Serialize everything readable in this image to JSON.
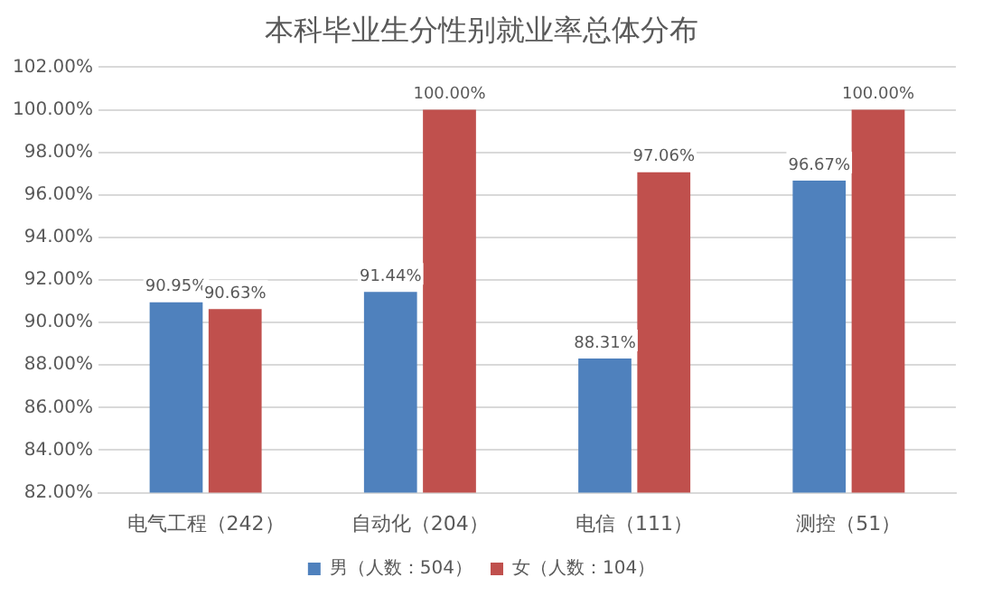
{
  "chart_data": {
    "type": "bar",
    "title": "本科毕业生分性别就业率总体分布",
    "categories": [
      "电气工程（242）",
      "自动化（204）",
      "电信（111）",
      "测控（51）"
    ],
    "series": [
      {
        "name": "男（人数：504）",
        "color": "#4f81bd",
        "values": [
          90.95,
          91.44,
          88.31,
          96.67
        ],
        "value_labels": [
          "90.95%",
          "91.44%",
          "88.31%",
          "96.67%"
        ]
      },
      {
        "name": "女（人数：104）",
        "color": "#c0504d",
        "values": [
          90.63,
          100,
          97.06,
          100
        ],
        "value_labels": [
          "90.63%",
          "100.00%",
          "97.06%",
          "100.00%"
        ]
      }
    ],
    "ylim": [
      82,
      102
    ],
    "yticks": [
      {
        "value": 82,
        "label": "82.00%"
      },
      {
        "value": 84,
        "label": "84.00%"
      },
      {
        "value": 86,
        "label": "86.00%"
      },
      {
        "value": 88,
        "label": "88.00%"
      },
      {
        "value": 90,
        "label": "90.00%"
      },
      {
        "value": 92,
        "label": "92.00%"
      },
      {
        "value": 94,
        "label": "94.00%"
      },
      {
        "value": 96,
        "label": "96.00%"
      },
      {
        "value": 98,
        "label": "98.00%"
      },
      {
        "value": 100,
        "label": "100.00%"
      },
      {
        "value": 102,
        "label": "102.00%"
      }
    ],
    "grid": "y",
    "legend": "bottom"
  }
}
